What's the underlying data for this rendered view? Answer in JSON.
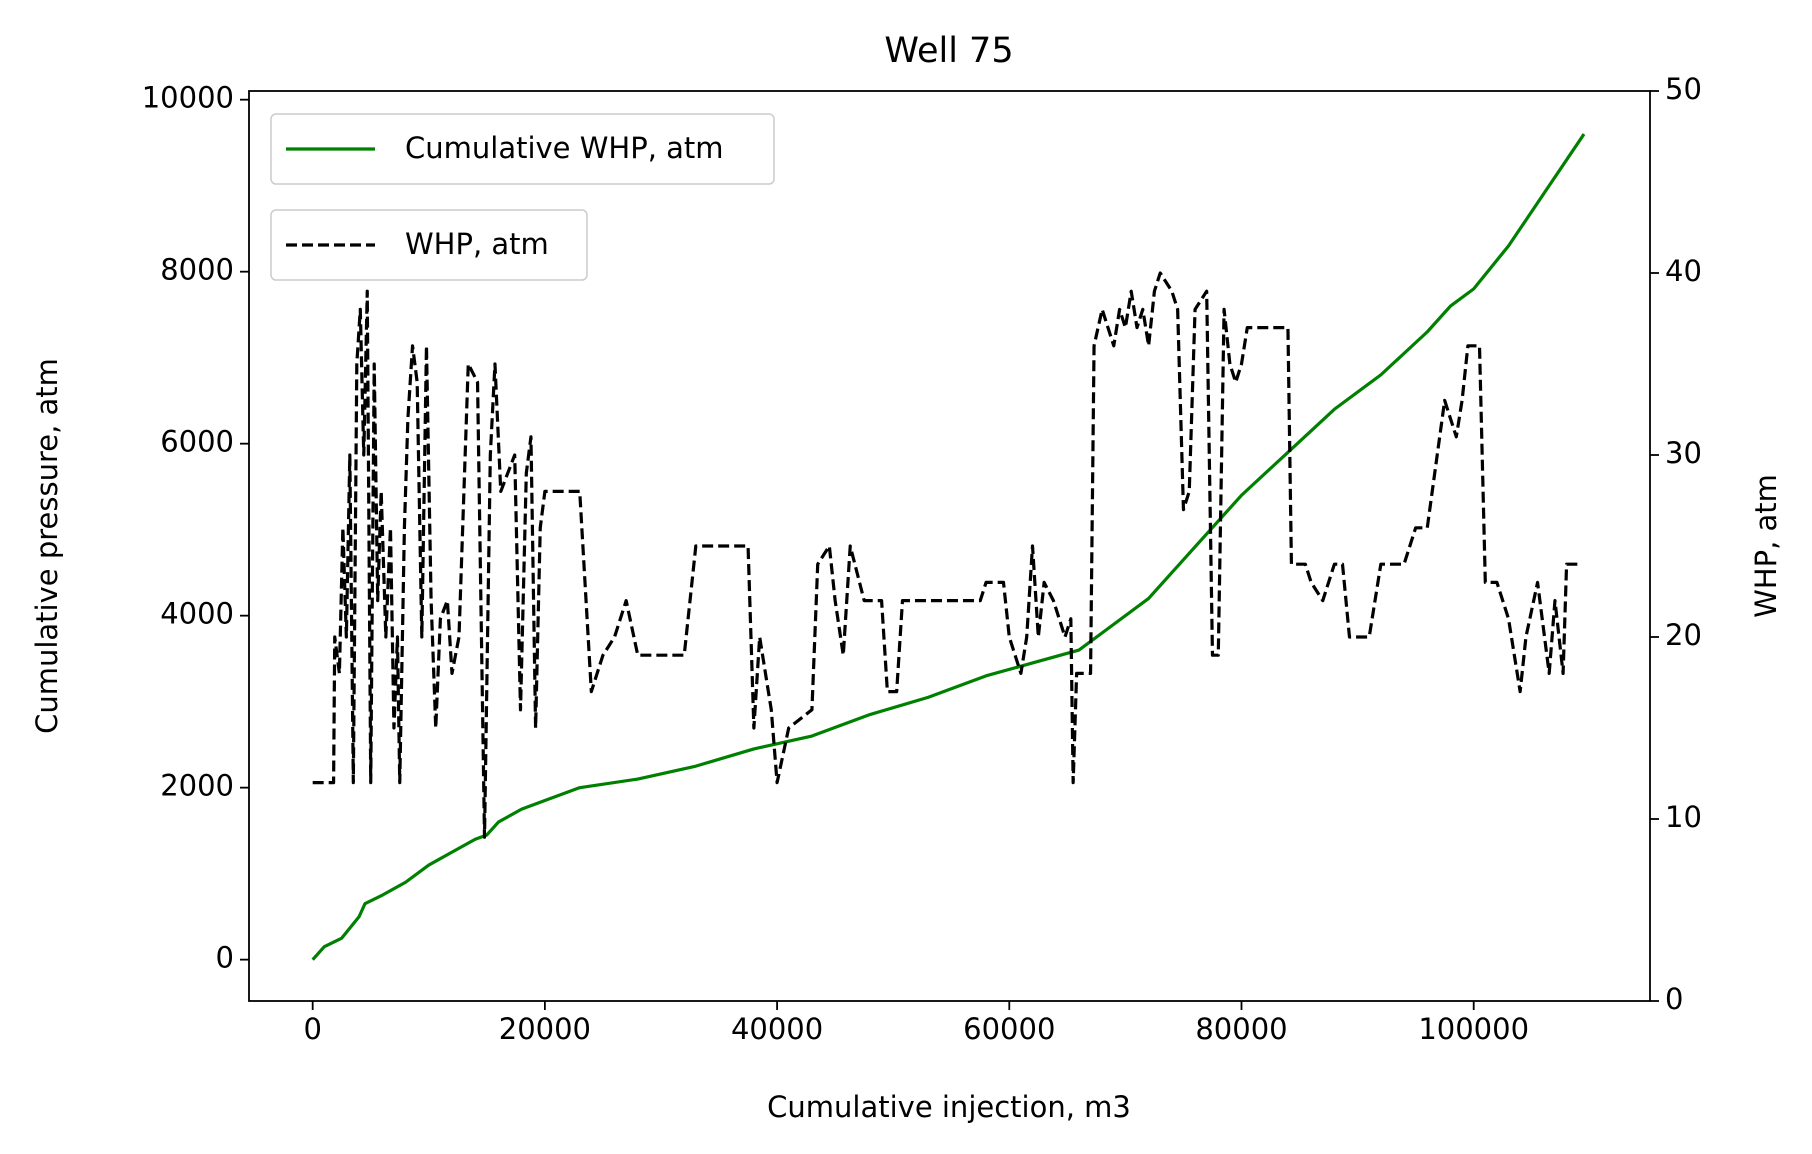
{
  "chart_data": {
    "type": "line",
    "title": "Well 75",
    "xlabel": "Cumulative injection, m3",
    "ylabel": "Cumulative pressure, atm",
    "y2label": "WHP, atm",
    "xlim": [
      -5485,
      115185
    ],
    "ylim": [
      -481,
      10101
    ],
    "y2lim": [
      0,
      50
    ],
    "xticks": [
      0,
      20000,
      40000,
      60000,
      80000,
      100000
    ],
    "yticks": [
      0,
      2000,
      4000,
      6000,
      8000,
      10000
    ],
    "y2ticks": [
      0,
      10,
      20,
      30,
      40,
      50
    ],
    "grid": false,
    "legend": "upper left",
    "series": [
      {
        "name": "Cumulative WHP, atm",
        "color": "#008000",
        "style": "solid",
        "axis": "y",
        "x": [
          0,
          1000,
          2500,
          4000,
          4500,
          6000,
          8000,
          10000,
          12000,
          14000,
          15000,
          16000,
          18000,
          20000,
          23000,
          28000,
          33000,
          38000,
          43000,
          48000,
          53000,
          58000,
          62000,
          66000,
          68000,
          72000,
          76000,
          80000,
          84000,
          88000,
          92000,
          96000,
          98000,
          100000,
          103000,
          106000,
          109500
        ],
        "values": [
          0,
          150,
          250,
          500,
          650,
          750,
          900,
          1100,
          1250,
          1400,
          1450,
          1600,
          1750,
          1850,
          2000,
          2100,
          2250,
          2450,
          2600,
          2850,
          3050,
          3300,
          3450,
          3600,
          3800,
          4200,
          4800,
          5400,
          5900,
          6400,
          6800,
          7300,
          7600,
          7800,
          8300,
          8900,
          9600
        ]
      },
      {
        "name": "WHP, atm",
        "color": "#000000",
        "style": "dashed",
        "axis": "y2",
        "x": [
          0,
          1800,
          1900,
          2300,
          2600,
          2900,
          3200,
          3500,
          3800,
          4100,
          4400,
          4700,
          5000,
          5300,
          5600,
          5900,
          6300,
          6700,
          7000,
          7300,
          7500,
          7900,
          8200,
          8600,
          9000,
          9400,
          9800,
          10200,
          10600,
          11000,
          11600,
          12000,
          12600,
          13400,
          14200,
          14800,
          15300,
          15700,
          16200,
          16800,
          17400,
          17900,
          18400,
          18800,
          19200,
          19600,
          20000,
          23000,
          24000,
          25000,
          26000,
          27000,
          28000,
          30000,
          32000,
          33000,
          36000,
          37500,
          38000,
          38500,
          39500,
          40000,
          41000,
          42000,
          43000,
          43500,
          44500,
          45000,
          45700,
          46300,
          47500,
          49000,
          49500,
          50300,
          50800,
          52000,
          57500,
          58000,
          59500,
          60000,
          61000,
          61500,
          62000,
          62500,
          63000,
          63800,
          64800,
          65300,
          65500,
          65800,
          67000,
          67300,
          68000,
          68500,
          69000,
          69500,
          70000,
          70500,
          71000,
          71500,
          72000,
          72500,
          73000,
          74000,
          74500,
          75000,
          75500,
          76000,
          77000,
          77500,
          78000,
          78500,
          79000,
          79500,
          80000,
          80500,
          82000,
          84000,
          84300,
          85500,
          86000,
          87000,
          88000,
          88700,
          89300,
          90000,
          91000,
          92000,
          94000,
          95000,
          96000,
          97500,
          98500,
          99000,
          99500,
          100500,
          101000,
          102000,
          103000,
          104000,
          104500,
          105500,
          106500,
          107000,
          107700,
          108000,
          109000
        ],
        "values": [
          12,
          12,
          20,
          18,
          26,
          20,
          30,
          12,
          35,
          38,
          30,
          39,
          12,
          35,
          22,
          28,
          20,
          26,
          15,
          20,
          12,
          26,
          32,
          36,
          34,
          20,
          36,
          22,
          15,
          21,
          22,
          18,
          20,
          35,
          34,
          9,
          30,
          35,
          28,
          29,
          30,
          16,
          29,
          31,
          15,
          26,
          28,
          28,
          17,
          19,
          20,
          22,
          19,
          19,
          19,
          25,
          25,
          25,
          15,
          20,
          16,
          12,
          15,
          15.5,
          16,
          24,
          25,
          22,
          19,
          25,
          22,
          22,
          17,
          17,
          22,
          22,
          22,
          23,
          23,
          20,
          18,
          20,
          25,
          20,
          23,
          22,
          20,
          21,
          12,
          18,
          18,
          36,
          38,
          37,
          36,
          38,
          37,
          39,
          37,
          38,
          36,
          39,
          40,
          39,
          38,
          27,
          28,
          38,
          39,
          19,
          19,
          38,
          35,
          34,
          35,
          37,
          37,
          37,
          24,
          24,
          23,
          22,
          24,
          24,
          20,
          20,
          20,
          24,
          24,
          26,
          26,
          33,
          31,
          33,
          36,
          36,
          23,
          23,
          21,
          17,
          20,
          23,
          18,
          22,
          18,
          24,
          24
        ]
      }
    ]
  }
}
